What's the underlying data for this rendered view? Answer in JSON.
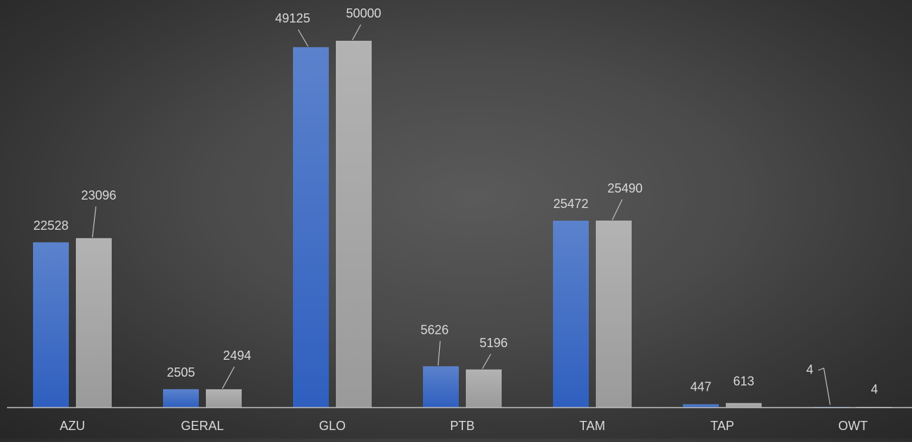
{
  "chart_data": {
    "type": "bar",
    "title": "",
    "xlabel": "",
    "ylabel": "",
    "categories": [
      "AZU",
      "GERAL",
      "GLO",
      "PTB",
      "TAM",
      "TAP",
      "OWT"
    ],
    "series": [
      {
        "values": [
          22528,
          2505,
          49125,
          5626,
          25472,
          447,
          4
        ],
        "color": "#4472c4"
      },
      {
        "values": [
          23096,
          2494,
          50000,
          5196,
          25490,
          613,
          4
        ],
        "color": "#a5a5a5"
      }
    ],
    "ylim": [
      0,
      50000
    ],
    "grid": false,
    "legend": "none",
    "data_labels": true
  }
}
